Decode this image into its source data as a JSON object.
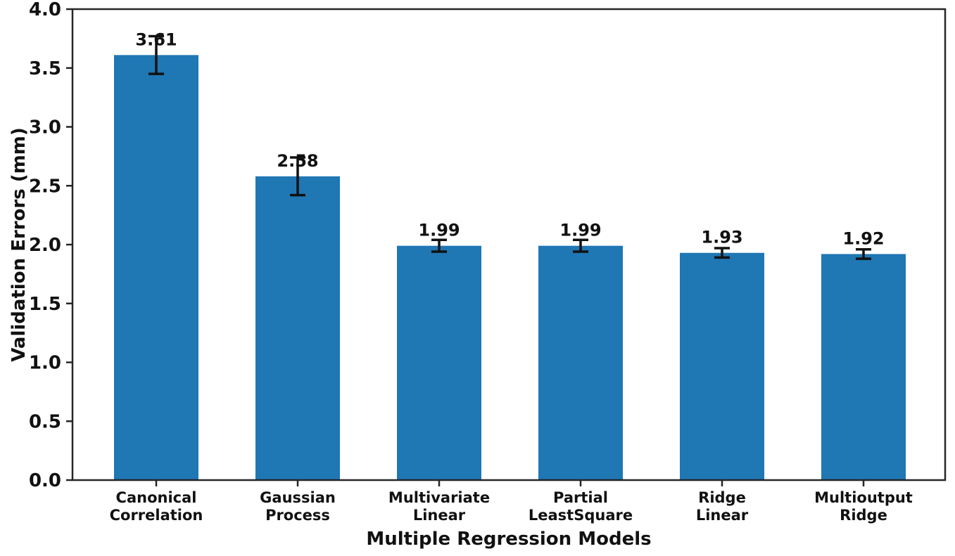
{
  "chart_data": {
    "type": "bar",
    "title": "",
    "xlabel": "Multiple Regression Models",
    "ylabel": "Validation Errors (mm)",
    "categories": [
      "Canonical\nCorrelation",
      "Gaussian\nProcess",
      "Multivariate\nLinear",
      "Partial\nLeastSquare",
      "Ridge\nLinear",
      "Multioutput\nRidge"
    ],
    "series": [
      {
        "name": "Validation Errors",
        "values": [
          3.61,
          2.58,
          1.99,
          1.99,
          1.93,
          1.92
        ],
        "errors": [
          0.16,
          0.16,
          0.05,
          0.05,
          0.04,
          0.04
        ],
        "value_labels": [
          "3.61",
          "2.58",
          "1.99",
          "1.99",
          "1.93",
          "1.92"
        ]
      }
    ],
    "ylim": [
      0.0,
      4.0
    ],
    "y_tick_labels": [
      "0.0",
      "0.5",
      "1.0",
      "1.5",
      "2.0",
      "2.5",
      "3.0",
      "3.5",
      "4.0"
    ],
    "y_tick_values": [
      0.0,
      0.5,
      1.0,
      1.5,
      2.0,
      2.5,
      3.0,
      3.5,
      4.0
    ],
    "grid": false,
    "legend": null,
    "colors": {
      "bar": "#1f77b4",
      "error_bar": "#111111",
      "axis": "#262626",
      "text": "#111111",
      "background": "#ffffff"
    }
  }
}
